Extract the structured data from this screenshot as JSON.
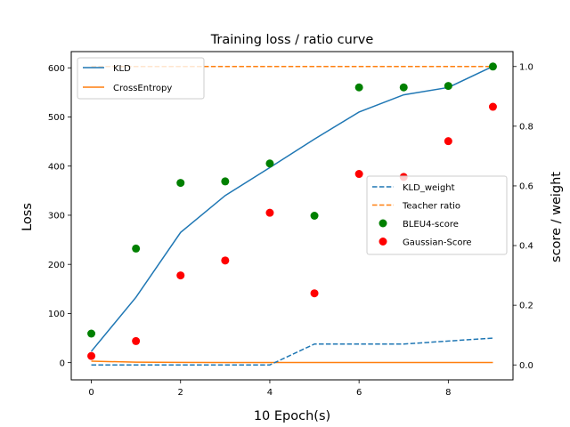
{
  "chart_data": {
    "type": "line",
    "title": "Training loss / ratio curve",
    "xlabel": "10 Epoch(s)",
    "ylabel_left": "Loss",
    "ylabel_right": "score / weight",
    "x": [
      0,
      1,
      2,
      3,
      4,
      5,
      6,
      7,
      8,
      9
    ],
    "xlim": [
      -0.45,
      9.45
    ],
    "ylim_left": [
      -35,
      633
    ],
    "ylim_right": [
      -0.05,
      1.05
    ],
    "xticks": [
      0,
      2,
      4,
      6,
      8
    ],
    "yticks_left": [
      0,
      100,
      200,
      300,
      400,
      500,
      600
    ],
    "yticks_right": [
      0.0,
      0.2,
      0.4,
      0.6,
      0.8,
      1.0
    ],
    "grid": false,
    "left_series": [
      {
        "name": "KLD",
        "kind": "line",
        "style": "solid",
        "color": "#1f77b4",
        "values": [
          23,
          133,
          265,
          340,
          397,
          455,
          510,
          545,
          560,
          603
        ]
      },
      {
        "name": "CrossEntropy",
        "kind": "line",
        "style": "solid",
        "color": "#ff7f0e",
        "values": [
          3,
          1,
          0.5,
          0.3,
          0.2,
          0.2,
          0.2,
          0.2,
          0.2,
          0.2
        ]
      }
    ],
    "right_series": [
      {
        "name": "KLD_weight",
        "kind": "line",
        "style": "dashed",
        "color": "#1f77b4",
        "values": [
          0.0,
          0.0,
          0.0,
          0.0,
          0.0,
          0.07,
          0.07,
          0.07,
          0.08,
          0.09
        ]
      },
      {
        "name": "Teacher ratio",
        "kind": "line",
        "style": "dashed",
        "color": "#ff7f0e",
        "values": [
          1.0,
          1.0,
          1.0,
          1.0,
          1.0,
          1.0,
          1.0,
          1.0,
          1.0,
          1.0
        ]
      },
      {
        "name": "BLEU4-score",
        "kind": "scatter",
        "color": "#008000",
        "values": [
          0.105,
          0.39,
          0.61,
          0.615,
          0.675,
          0.5,
          0.93,
          0.93,
          0.935,
          1.0
        ]
      },
      {
        "name": "Gaussian-Score",
        "kind": "scatter",
        "color": "#ff0000",
        "values": [
          0.03,
          0.08,
          0.3,
          0.35,
          0.51,
          0.24,
          0.64,
          0.63,
          0.75,
          0.865
        ]
      }
    ],
    "legend_left_placement": "upper-left",
    "legend_right_placement": "center-right"
  }
}
